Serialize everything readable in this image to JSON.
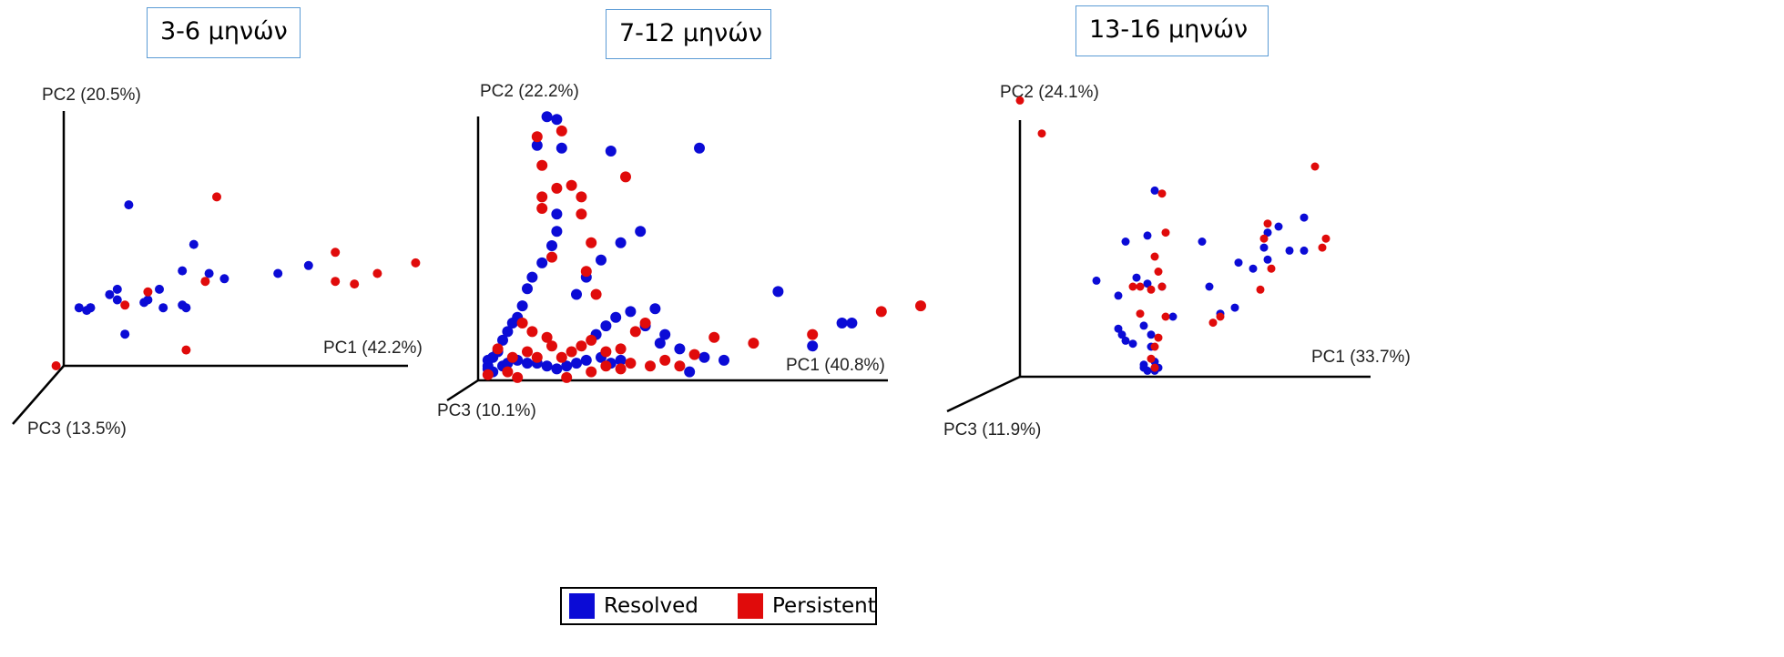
{
  "legend": {
    "items": [
      {
        "label": "Resolved",
        "color": "#0b0bd6"
      },
      {
        "label": "Persistent",
        "color": "#e00b0b"
      }
    ]
  },
  "chart_data": [
    {
      "type": "scatter",
      "title": "3-6 μηνών",
      "axis_labels": {
        "pc1": "PC1 (42.2%)",
        "pc2": "PC2 (20.5%)",
        "pc3": "PC3 (13.5%)"
      },
      "series": [
        {
          "name": "Resolved",
          "points": [
            [
              0.07,
              0.22
            ],
            [
              0.07,
              0.22
            ],
            [
              0.14,
              0.25
            ],
            [
              0.16,
              0.12
            ],
            [
              0.21,
              0.24
            ],
            [
              0.22,
              0.25
            ],
            [
              0.26,
              0.22
            ],
            [
              0.31,
              0.23
            ],
            [
              0.31,
              0.36
            ],
            [
              0.32,
              0.22
            ],
            [
              0.25,
              0.29
            ],
            [
              0.06,
              0.21
            ],
            [
              0.04,
              0.22
            ],
            [
              0.12,
              0.27
            ],
            [
              0.14,
              0.29
            ],
            [
              0.38,
              0.35
            ],
            [
              0.64,
              0.38
            ],
            [
              0.56,
              0.35
            ],
            [
              0.42,
              0.33
            ],
            [
              0.34,
              0.46
            ],
            [
              0.17,
              0.61
            ]
          ]
        },
        {
          "name": "Persistent",
          "points": [
            [
              0.16,
              0.23
            ],
            [
              0.37,
              0.32
            ],
            [
              0.22,
              0.28
            ],
            [
              0.71,
              0.32
            ],
            [
              0.76,
              0.31
            ],
            [
              0.82,
              0.35
            ],
            [
              0.92,
              0.39
            ],
            [
              0.71,
              0.43
            ],
            [
              0.4,
              0.64
            ],
            [
              0.32,
              0.06
            ],
            [
              -0.02,
              0.0
            ]
          ]
        }
      ]
    },
    {
      "type": "scatter",
      "title": "7-12 μηνών",
      "axis_labels": {
        "pc1": "PC1 (40.8%)",
        "pc2": "PC2 (22.2%)",
        "pc3": "PC3 (10.1%)"
      },
      "series": [
        {
          "name": "Resolved",
          "points": [
            [
              0.14,
              0.92
            ],
            [
              0.16,
              0.91
            ],
            [
              0.12,
              0.82
            ],
            [
              0.17,
              0.81
            ],
            [
              0.27,
              0.8
            ],
            [
              0.45,
              0.81
            ],
            [
              0.16,
              0.58
            ],
            [
              0.16,
              0.52
            ],
            [
              0.15,
              0.47
            ],
            [
              0.13,
              0.41
            ],
            [
              0.11,
              0.36
            ],
            [
              0.1,
              0.32
            ],
            [
              0.09,
              0.26
            ],
            [
              0.08,
              0.22
            ],
            [
              0.07,
              0.2
            ],
            [
              0.06,
              0.17
            ],
            [
              0.05,
              0.14
            ],
            [
              0.04,
              0.1
            ],
            [
              0.03,
              0.08
            ],
            [
              0.02,
              0.07
            ],
            [
              0.02,
              0.05
            ],
            [
              0.02,
              0.04
            ],
            [
              0.03,
              0.03
            ],
            [
              0.05,
              0.05
            ],
            [
              0.06,
              0.06
            ],
            [
              0.08,
              0.07
            ],
            [
              0.1,
              0.06
            ],
            [
              0.12,
              0.06
            ],
            [
              0.14,
              0.05
            ],
            [
              0.16,
              0.04
            ],
            [
              0.18,
              0.05
            ],
            [
              0.2,
              0.06
            ],
            [
              0.22,
              0.07
            ],
            [
              0.25,
              0.08
            ],
            [
              0.27,
              0.06
            ],
            [
              0.29,
              0.07
            ],
            [
              0.24,
              0.16
            ],
            [
              0.26,
              0.19
            ],
            [
              0.28,
              0.22
            ],
            [
              0.31,
              0.24
            ],
            [
              0.34,
              0.19
            ],
            [
              0.37,
              0.13
            ],
            [
              0.41,
              0.11
            ],
            [
              0.46,
              0.08
            ],
            [
              0.5,
              0.07
            ],
            [
              0.2,
              0.3
            ],
            [
              0.22,
              0.36
            ],
            [
              0.25,
              0.42
            ],
            [
              0.29,
              0.48
            ],
            [
              0.33,
              0.52
            ],
            [
              0.36,
              0.25
            ],
            [
              0.38,
              0.16
            ],
            [
              0.43,
              0.03
            ],
            [
              0.61,
              0.31
            ],
            [
              0.68,
              0.12
            ],
            [
              0.74,
              0.2
            ],
            [
              0.76,
              0.2
            ]
          ]
        },
        {
          "name": "Persistent",
          "points": [
            [
              0.12,
              0.85
            ],
            [
              0.17,
              0.87
            ],
            [
              0.13,
              0.75
            ],
            [
              0.16,
              0.67
            ],
            [
              0.13,
              0.64
            ],
            [
              0.19,
              0.68
            ],
            [
              0.21,
              0.64
            ],
            [
              0.13,
              0.6
            ],
            [
              0.21,
              0.58
            ],
            [
              0.23,
              0.48
            ],
            [
              0.15,
              0.43
            ],
            [
              0.22,
              0.38
            ],
            [
              0.24,
              0.3
            ],
            [
              0.09,
              0.2
            ],
            [
              0.11,
              0.17
            ],
            [
              0.14,
              0.15
            ],
            [
              0.15,
              0.12
            ],
            [
              0.04,
              0.11
            ],
            [
              0.07,
              0.08
            ],
            [
              0.1,
              0.1
            ],
            [
              0.12,
              0.08
            ],
            [
              0.17,
              0.08
            ],
            [
              0.19,
              0.1
            ],
            [
              0.21,
              0.12
            ],
            [
              0.23,
              0.14
            ],
            [
              0.26,
              0.1
            ],
            [
              0.29,
              0.11
            ],
            [
              0.31,
              0.06
            ],
            [
              0.35,
              0.05
            ],
            [
              0.38,
              0.07
            ],
            [
              0.41,
              0.05
            ],
            [
              0.26,
              0.05
            ],
            [
              0.29,
              0.04
            ],
            [
              0.23,
              0.03
            ],
            [
              0.06,
              0.03
            ],
            [
              0.08,
              0.01
            ],
            [
              0.18,
              0.01
            ],
            [
              0.02,
              0.02
            ],
            [
              0.32,
              0.17
            ],
            [
              0.34,
              0.2
            ],
            [
              0.44,
              0.09
            ],
            [
              0.48,
              0.15
            ],
            [
              0.56,
              0.13
            ],
            [
              0.3,
              0.71
            ],
            [
              0.68,
              0.16
            ],
            [
              0.82,
              0.24
            ],
            [
              0.9,
              0.26
            ]
          ]
        }
      ]
    },
    {
      "type": "scatter",
      "title": "13-16 μηνών",
      "axis_labels": {
        "pc1": "PC1 (33.7%)",
        "pc2": "PC2 (24.1%)",
        "pc3": "PC3 (11.9%)"
      },
      "series": [
        {
          "name": "Resolved",
          "points": [
            [
              0.37,
              0.62
            ],
            [
              0.35,
              0.47
            ],
            [
              0.29,
              0.45
            ],
            [
              0.21,
              0.32
            ],
            [
              0.27,
              0.27
            ],
            [
              0.32,
              0.33
            ],
            [
              0.35,
              0.31
            ],
            [
              0.39,
              0.3
            ],
            [
              0.34,
              0.17
            ],
            [
              0.36,
              0.14
            ],
            [
              0.36,
              0.1
            ],
            [
              0.37,
              0.05
            ],
            [
              0.34,
              0.04
            ],
            [
              0.34,
              0.03
            ],
            [
              0.35,
              0.02
            ],
            [
              0.37,
              0.02
            ],
            [
              0.38,
              0.03
            ],
            [
              0.27,
              0.16
            ],
            [
              0.28,
              0.14
            ],
            [
              0.29,
              0.12
            ],
            [
              0.31,
              0.11
            ],
            [
              0.42,
              0.2
            ],
            [
              0.5,
              0.45
            ],
            [
              0.52,
              0.3
            ],
            [
              0.55,
              0.21
            ],
            [
              0.59,
              0.23
            ],
            [
              0.6,
              0.38
            ],
            [
              0.64,
              0.36
            ],
            [
              0.67,
              0.43
            ],
            [
              0.68,
              0.39
            ],
            [
              0.68,
              0.48
            ],
            [
              0.71,
              0.5
            ],
            [
              0.74,
              0.42
            ],
            [
              0.78,
              0.42
            ],
            [
              0.78,
              0.53
            ]
          ]
        },
        {
          "name": "Persistent",
          "points": [
            [
              0.0,
              0.92
            ],
            [
              0.06,
              0.81
            ],
            [
              0.39,
              0.61
            ],
            [
              0.4,
              0.48
            ],
            [
              0.37,
              0.4
            ],
            [
              0.38,
              0.35
            ],
            [
              0.31,
              0.3
            ],
            [
              0.33,
              0.3
            ],
            [
              0.36,
              0.29
            ],
            [
              0.39,
              0.3
            ],
            [
              0.33,
              0.21
            ],
            [
              0.4,
              0.2
            ],
            [
              0.38,
              0.13
            ],
            [
              0.37,
              0.1
            ],
            [
              0.36,
              0.06
            ],
            [
              0.37,
              0.03
            ],
            [
              0.53,
              0.18
            ],
            [
              0.55,
              0.2
            ],
            [
              0.66,
              0.29
            ],
            [
              0.69,
              0.36
            ],
            [
              0.67,
              0.46
            ],
            [
              0.68,
              0.51
            ],
            [
              0.81,
              0.7
            ],
            [
              0.83,
              0.43
            ],
            [
              0.84,
              0.46
            ]
          ]
        }
      ]
    }
  ]
}
